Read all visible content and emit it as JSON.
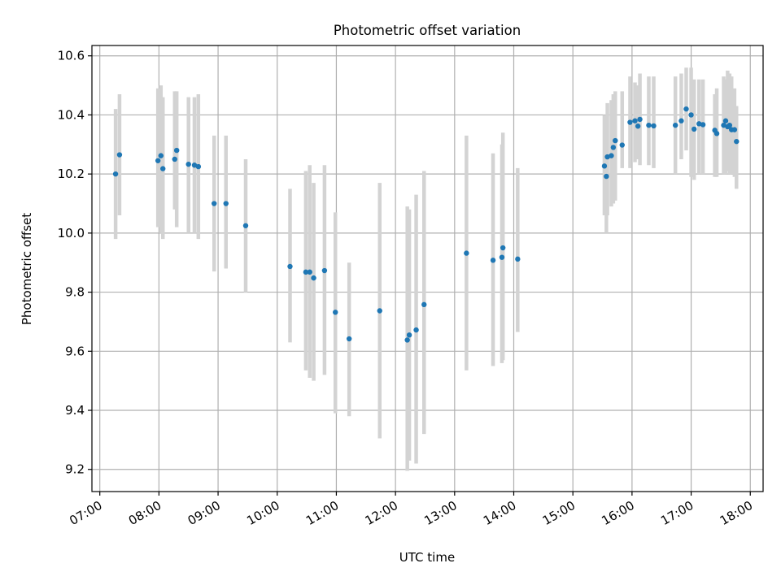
{
  "chart_data": {
    "type": "scatter",
    "title": "Photometric offset variation",
    "xlabel": "UTC time",
    "ylabel": "Photometric offset",
    "x_ticks": [
      "07:00",
      "08:00",
      "09:00",
      "10:00",
      "11:00",
      "12:00",
      "13:00",
      "14:00",
      "15:00",
      "16:00",
      "17:00",
      "18:00"
    ],
    "y_ticks": [
      "9.2",
      "9.4",
      "9.6",
      "9.8",
      "10.0",
      "10.2",
      "10.4",
      "10.6"
    ],
    "xlim": [
      "06:52",
      "18:13"
    ],
    "ylim": [
      9.125,
      10.635
    ],
    "grid": true,
    "colors": {
      "marker": "#1f77b4",
      "errorbar": "#d3d3d3",
      "grid": "#b0b0b0"
    },
    "series": [
      {
        "x": [
          "07:16",
          "07:20",
          "07:59",
          "08:02",
          "08:04",
          "08:16",
          "08:18",
          "08:30",
          "08:36",
          "08:40",
          "08:56",
          "09:08",
          "09:28",
          "10:13",
          "10:29",
          "10:33",
          "10:37",
          "10:48",
          "10:59",
          "11:13",
          "11:44",
          "12:12",
          "12:14",
          "12:21",
          "12:29",
          "13:12",
          "13:39",
          "13:48",
          "13:49",
          "14:04",
          "15:32",
          "15:34",
          "15:35",
          "15:39",
          "15:41",
          "15:43",
          "15:50",
          "15:58",
          "16:03",
          "16:06",
          "16:08",
          "16:17",
          "16:22",
          "16:44",
          "16:50",
          "16:55",
          "17:00",
          "17:03",
          "17:08",
          "17:12",
          "17:24",
          "17:26",
          "17:33",
          "17:35",
          "17:37",
          "17:39",
          "17:41",
          "17:44",
          "17:46"
        ],
        "y": [
          10.2,
          10.265,
          10.245,
          10.262,
          10.218,
          10.25,
          10.28,
          10.233,
          10.23,
          10.225,
          10.1,
          10.1,
          10.025,
          9.887,
          9.868,
          9.868,
          9.848,
          9.873,
          9.732,
          9.642,
          9.737,
          9.638,
          9.655,
          9.672,
          9.758,
          9.932,
          9.908,
          9.918,
          9.95,
          9.912,
          10.227,
          10.192,
          10.258,
          10.262,
          10.29,
          10.313,
          10.298,
          10.375,
          10.38,
          10.362,
          10.385,
          10.365,
          10.363,
          10.365,
          10.38,
          10.42,
          10.4,
          10.352,
          10.37,
          10.367,
          10.348,
          10.337,
          10.365,
          10.38,
          10.36,
          10.365,
          10.35,
          10.35,
          10.31
        ],
        "yerr_low": [
          9.98,
          10.06,
          10.02,
          10.0,
          9.98,
          10.08,
          10.02,
          10.0,
          10.0,
          9.98,
          9.87,
          9.88,
          9.8,
          9.63,
          9.535,
          9.51,
          9.5,
          9.52,
          9.39,
          9.38,
          9.305,
          9.195,
          9.23,
          9.22,
          9.32,
          9.535,
          9.55,
          9.56,
          9.57,
          9.665,
          10.06,
          10.0,
          10.06,
          10.09,
          10.1,
          10.11,
          10.22,
          10.22,
          10.24,
          10.25,
          10.23,
          10.23,
          10.22,
          10.2,
          10.25,
          10.28,
          10.19,
          10.18,
          10.2,
          10.2,
          10.19,
          10.19,
          10.2,
          10.2,
          10.21,
          10.2,
          10.2,
          10.19,
          10.15
        ],
        "yerr_high": [
          10.42,
          10.47,
          10.49,
          10.5,
          10.46,
          10.48,
          10.48,
          10.46,
          10.46,
          10.47,
          10.33,
          10.33,
          10.25,
          10.15,
          10.21,
          10.23,
          10.17,
          10.23,
          10.07,
          9.9,
          10.17,
          10.09,
          10.08,
          10.13,
          10.21,
          10.33,
          10.27,
          10.3,
          10.34,
          10.22,
          10.4,
          10.38,
          10.44,
          10.45,
          10.47,
          10.48,
          10.48,
          10.53,
          10.51,
          10.5,
          10.54,
          10.53,
          10.53,
          10.53,
          10.54,
          10.56,
          10.56,
          10.52,
          10.52,
          10.52,
          10.47,
          10.49,
          10.53,
          10.52,
          10.55,
          10.54,
          10.53,
          10.49,
          10.43
        ]
      }
    ]
  }
}
